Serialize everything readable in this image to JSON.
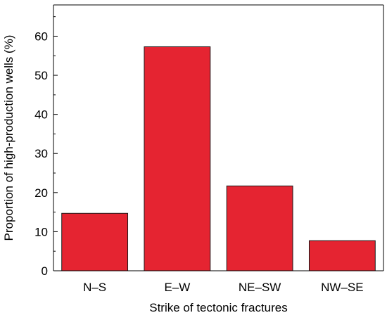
{
  "chart_data": {
    "type": "bar",
    "title": "",
    "xlabel": "Strike of tectonic fractures",
    "ylabel": "Proportion of high-production wells (%)",
    "categories": [
      "N–S",
      "E–W",
      "NE–SW",
      "NW–SE"
    ],
    "values": [
      14.7,
      57.3,
      21.7,
      7.7
    ],
    "ylim": [
      0,
      68
    ],
    "yticks": [
      0,
      10,
      20,
      30,
      40,
      50,
      60
    ],
    "grid": false,
    "legend": "none",
    "bar_color": "#e52431",
    "bar_edge_color": "#1a1a1a"
  }
}
